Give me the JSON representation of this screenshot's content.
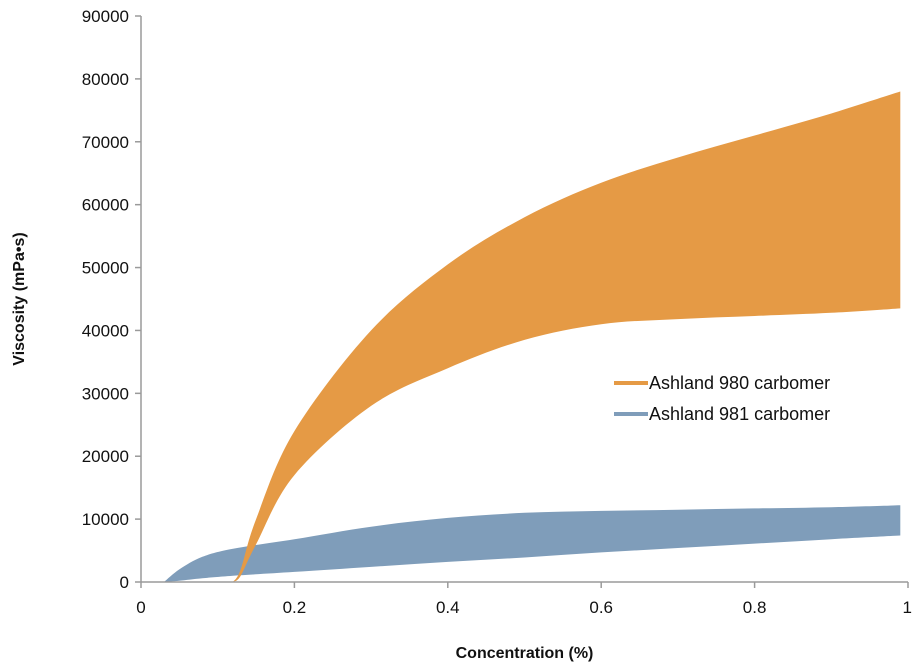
{
  "chart_data": {
    "type": "area",
    "xlabel": "Concentration (%)",
    "ylabel": "Viscosity (mPa•s)",
    "xlim": [
      0,
      1
    ],
    "ylim": [
      0,
      90000
    ],
    "x_ticks": [
      0,
      0.2,
      0.4,
      0.6,
      0.8,
      1
    ],
    "x_tick_labels": [
      "0",
      "0.2",
      "0.4",
      "0.6",
      "0.8",
      "1"
    ],
    "y_ticks": [
      0,
      10000,
      20000,
      30000,
      40000,
      50000,
      60000,
      70000,
      80000,
      90000
    ],
    "y_tick_labels": [
      "0",
      "10000",
      "20000",
      "30000",
      "40000",
      "50000",
      "60000",
      "70000",
      "80000",
      "90000"
    ],
    "grid": false,
    "legend_position": "center-right",
    "series": [
      {
        "name": "Ashland 980 carbomer",
        "color": "#E59A45",
        "x": [
          0.12,
          0.13,
          0.15,
          0.2,
          0.3,
          0.4,
          0.5,
          0.6,
          0.7,
          0.8,
          0.9,
          0.99
        ],
        "upper": [
          0,
          2000,
          10000,
          24000,
          40000,
          50500,
          58000,
          63500,
          67500,
          71000,
          74500,
          78000
        ],
        "lower": [
          0,
          1000,
          6000,
          17000,
          28000,
          34000,
          38500,
          41000,
          41800,
          42300,
          42800,
          43500
        ]
      },
      {
        "name": "Ashland 981 carbomer",
        "color": "#7F9DBA",
        "x": [
          0.03,
          0.05,
          0.08,
          0.12,
          0.2,
          0.3,
          0.4,
          0.5,
          0.6,
          0.7,
          0.8,
          0.9,
          0.99
        ],
        "upper": [
          0,
          2000,
          4000,
          5300,
          6800,
          8800,
          10200,
          11000,
          11300,
          11500,
          11700,
          11900,
          12200
        ],
        "lower": [
          0,
          200,
          600,
          1000,
          1600,
          2400,
          3200,
          3900,
          4700,
          5400,
          6100,
          6800,
          7400
        ]
      }
    ]
  }
}
